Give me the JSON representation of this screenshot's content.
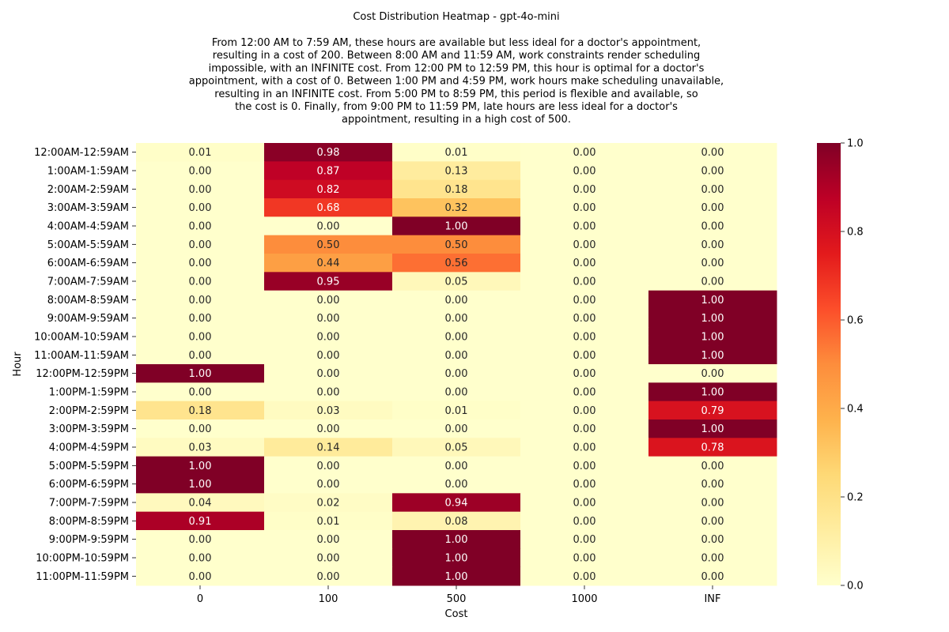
{
  "chart_data": {
    "type": "heatmap",
    "title": "Cost Distribution Heatmap - gpt-4o-mini",
    "description_lines": [
      "From 12:00 AM to 7:59 AM, these hours are available but less ideal for a doctor's appointment,",
      "resulting in a cost of 200. Between 8:00 AM and 11:59 AM, work constraints render scheduling",
      "impossible, with an INFINITE cost. From 12:00 PM to 12:59 PM, this hour is optimal for a doctor's",
      "appointment, with a cost of 0. Between 1:00 PM and 4:59 PM, work hours make scheduling unavailable,",
      "resulting in an INFINITE cost. From 5:00 PM to 8:59 PM, this period is flexible and available, so",
      "the cost is 0. Finally, from 9:00 PM to 11:59 PM, late hours are less ideal for a doctor's",
      "appointment, resulting in a high cost of 500."
    ],
    "xlabel": "Cost",
    "ylabel": "Hour",
    "columns": [
      "0",
      "100",
      "500",
      "1000",
      "INF"
    ],
    "rows": [
      "12:00AM-12:59AM",
      "1:00AM-1:59AM",
      "2:00AM-2:59AM",
      "3:00AM-3:59AM",
      "4:00AM-4:59AM",
      "5:00AM-5:59AM",
      "6:00AM-6:59AM",
      "7:00AM-7:59AM",
      "8:00AM-8:59AM",
      "9:00AM-9:59AM",
      "10:00AM-10:59AM",
      "11:00AM-11:59AM",
      "12:00PM-12:59PM",
      "1:00PM-1:59PM",
      "2:00PM-2:59PM",
      "3:00PM-3:59PM",
      "4:00PM-4:59PM",
      "5:00PM-5:59PM",
      "6:00PM-6:59PM",
      "7:00PM-7:59PM",
      "8:00PM-8:59PM",
      "9:00PM-9:59PM",
      "10:00PM-10:59PM",
      "11:00PM-11:59PM"
    ],
    "values": [
      [
        0.01,
        0.98,
        0.01,
        0.0,
        0.0
      ],
      [
        0.0,
        0.87,
        0.13,
        0.0,
        0.0
      ],
      [
        0.0,
        0.82,
        0.18,
        0.0,
        0.0
      ],
      [
        0.0,
        0.68,
        0.32,
        0.0,
        0.0
      ],
      [
        0.0,
        0.0,
        1.0,
        0.0,
        0.0
      ],
      [
        0.0,
        0.5,
        0.5,
        0.0,
        0.0
      ],
      [
        0.0,
        0.44,
        0.56,
        0.0,
        0.0
      ],
      [
        0.0,
        0.95,
        0.05,
        0.0,
        0.0
      ],
      [
        0.0,
        0.0,
        0.0,
        0.0,
        1.0
      ],
      [
        0.0,
        0.0,
        0.0,
        0.0,
        1.0
      ],
      [
        0.0,
        0.0,
        0.0,
        0.0,
        1.0
      ],
      [
        0.0,
        0.0,
        0.0,
        0.0,
        1.0
      ],
      [
        1.0,
        0.0,
        0.0,
        0.0,
        0.0
      ],
      [
        0.0,
        0.0,
        0.0,
        0.0,
        1.0
      ],
      [
        0.18,
        0.03,
        0.01,
        0.0,
        0.79
      ],
      [
        0.0,
        0.0,
        0.0,
        0.0,
        1.0
      ],
      [
        0.03,
        0.14,
        0.05,
        0.0,
        0.78
      ],
      [
        1.0,
        0.0,
        0.0,
        0.0,
        0.0
      ],
      [
        1.0,
        0.0,
        0.0,
        0.0,
        0.0
      ],
      [
        0.04,
        0.02,
        0.94,
        0.0,
        0.0
      ],
      [
        0.91,
        0.01,
        0.08,
        0.0,
        0.0
      ],
      [
        0.0,
        0.0,
        1.0,
        0.0,
        0.0
      ],
      [
        0.0,
        0.0,
        1.0,
        0.0,
        0.0
      ],
      [
        0.0,
        0.0,
        1.0,
        0.0,
        0.0
      ]
    ],
    "colormap": "YlOrRd",
    "vmin": 0.0,
    "vmax": 1.0,
    "colorbar_ticks": [
      "0.0",
      "0.2",
      "0.4",
      "0.6",
      "0.8",
      "1.0"
    ],
    "grid": false,
    "legend": "colorbar-right"
  }
}
